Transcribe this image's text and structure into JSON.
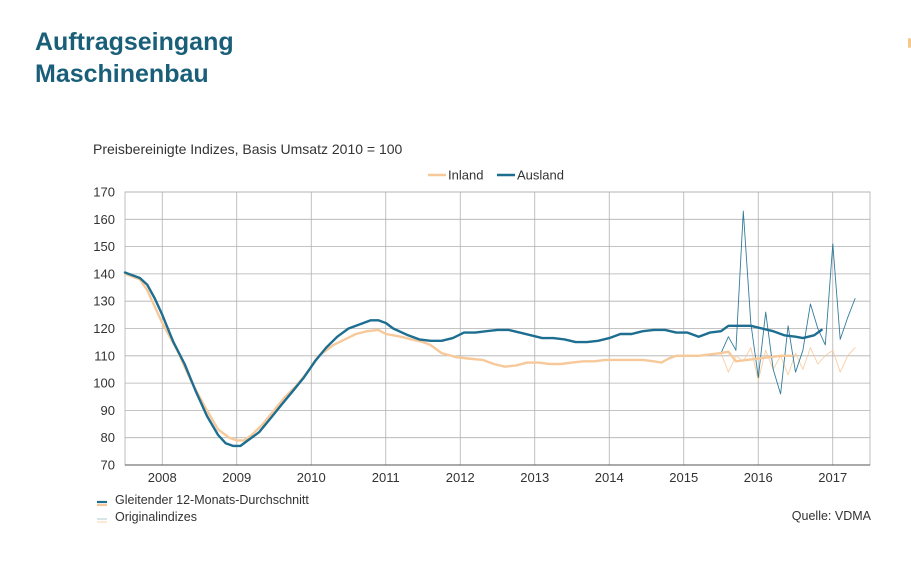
{
  "title": {
    "line1": "Auftragseingang",
    "line2": "Maschinenbau"
  },
  "subtitle": "Preisbereinigte Indizes, Basis Umsatz 2010 = 100",
  "legend_footer": {
    "smooth": "Gleitender 12-Monats-Durchschnitt",
    "original": "Originalindizes"
  },
  "source": "Quelle: VDMA",
  "colors": {
    "inland": "#f7c99a",
    "ausland": "#1d6e90",
    "grid": "#b0b0b0",
    "axis": "#555555"
  },
  "chart_data": {
    "type": "line",
    "title": "Preisbereinigte Indizes, Basis Umsatz 2010 = 100",
    "xlabel": "",
    "ylabel": "",
    "ylim": [
      70,
      170
    ],
    "yticks": [
      "70",
      "80",
      "90",
      "100",
      "110",
      "120",
      "130",
      "140",
      "150",
      "160",
      "170"
    ],
    "x_domain": [
      2007.5,
      2017.5
    ],
    "xticks": [
      "2008",
      "2009",
      "2010",
      "2011",
      "2012",
      "2013",
      "2014",
      "2015",
      "2016",
      "2017"
    ],
    "grid": true,
    "legend": "top-center",
    "series": [
      {
        "name": "Inland",
        "color": "#f7c99a",
        "points": [
          [
            2007.5,
            140
          ],
          [
            2007.7,
            138
          ],
          [
            2007.8,
            134
          ],
          [
            2007.9,
            128
          ],
          [
            2008.0,
            122
          ],
          [
            2008.2,
            112
          ],
          [
            2008.4,
            100
          ],
          [
            2008.6,
            90
          ],
          [
            2008.75,
            83
          ],
          [
            2008.9,
            80
          ],
          [
            2009.0,
            79
          ],
          [
            2009.1,
            79
          ],
          [
            2009.2,
            81
          ],
          [
            2009.35,
            85
          ],
          [
            2009.5,
            90
          ],
          [
            2009.65,
            95
          ],
          [
            2009.8,
            99
          ],
          [
            2009.95,
            104
          ],
          [
            2010.1,
            110
          ],
          [
            2010.3,
            114
          ],
          [
            2010.45,
            116
          ],
          [
            2010.6,
            118
          ],
          [
            2010.75,
            119
          ],
          [
            2010.9,
            119.5
          ],
          [
            2011.0,
            118
          ],
          [
            2011.2,
            117
          ],
          [
            2011.35,
            116
          ],
          [
            2011.5,
            115
          ],
          [
            2011.6,
            114
          ],
          [
            2011.75,
            111
          ],
          [
            2011.95,
            109.5
          ],
          [
            2012.1,
            109
          ],
          [
            2012.3,
            108.5
          ],
          [
            2012.45,
            107
          ],
          [
            2012.6,
            106
          ],
          [
            2012.75,
            106.5
          ],
          [
            2012.9,
            107.5
          ],
          [
            2013.05,
            107.5
          ],
          [
            2013.2,
            107
          ],
          [
            2013.35,
            107
          ],
          [
            2013.5,
            107.5
          ],
          [
            2013.65,
            108
          ],
          [
            2013.8,
            108
          ],
          [
            2013.95,
            108.5
          ],
          [
            2014.1,
            108.5
          ],
          [
            2014.3,
            108.5
          ],
          [
            2014.45,
            108.5
          ],
          [
            2014.6,
            108
          ],
          [
            2014.7,
            107.5
          ],
          [
            2014.8,
            109
          ],
          [
            2014.9,
            110
          ],
          [
            2015.05,
            110
          ],
          [
            2015.2,
            110
          ],
          [
            2015.35,
            110.5
          ],
          [
            2015.5,
            111
          ],
          [
            2015.6,
            111.5
          ],
          [
            2015.7,
            108
          ],
          [
            2015.85,
            108.5
          ],
          [
            2016.0,
            109
          ],
          [
            2016.15,
            109.5
          ],
          [
            2016.3,
            110
          ],
          [
            2016.45,
            110
          ]
        ]
      },
      {
        "name": "Ausland",
        "color": "#1d6e90",
        "points": [
          [
            2007.5,
            140.5
          ],
          [
            2007.7,
            138.5
          ],
          [
            2007.8,
            136
          ],
          [
            2007.9,
            131
          ],
          [
            2008.0,
            125
          ],
          [
            2008.15,
            115
          ],
          [
            2008.3,
            107
          ],
          [
            2008.45,
            97
          ],
          [
            2008.6,
            88
          ],
          [
            2008.75,
            81
          ],
          [
            2008.85,
            78
          ],
          [
            2008.95,
            77
          ],
          [
            2009.05,
            77
          ],
          [
            2009.15,
            79
          ],
          [
            2009.3,
            82
          ],
          [
            2009.45,
            87
          ],
          [
            2009.6,
            92
          ],
          [
            2009.75,
            97
          ],
          [
            2009.9,
            102
          ],
          [
            2010.05,
            108
          ],
          [
            2010.2,
            113
          ],
          [
            2010.35,
            117
          ],
          [
            2010.5,
            120
          ],
          [
            2010.65,
            121.5
          ],
          [
            2010.8,
            123
          ],
          [
            2010.9,
            123
          ],
          [
            2011.0,
            122
          ],
          [
            2011.1,
            120
          ],
          [
            2011.3,
            117.5
          ],
          [
            2011.45,
            116
          ],
          [
            2011.6,
            115.5
          ],
          [
            2011.75,
            115.5
          ],
          [
            2011.9,
            116.5
          ],
          [
            2012.05,
            118.5
          ],
          [
            2012.2,
            118.5
          ],
          [
            2012.35,
            119
          ],
          [
            2012.5,
            119.5
          ],
          [
            2012.65,
            119.5
          ],
          [
            2012.8,
            118.5
          ],
          [
            2012.95,
            117.5
          ],
          [
            2013.1,
            116.5
          ],
          [
            2013.25,
            116.5
          ],
          [
            2013.4,
            116
          ],
          [
            2013.55,
            115
          ],
          [
            2013.7,
            115
          ],
          [
            2013.85,
            115.5
          ],
          [
            2014.0,
            116.5
          ],
          [
            2014.15,
            118
          ],
          [
            2014.3,
            118
          ],
          [
            2014.45,
            119
          ],
          [
            2014.6,
            119.5
          ],
          [
            2014.75,
            119.5
          ],
          [
            2014.9,
            118.5
          ],
          [
            2015.05,
            118.5
          ],
          [
            2015.2,
            117
          ],
          [
            2015.35,
            118.5
          ],
          [
            2015.5,
            119
          ],
          [
            2015.6,
            121
          ],
          [
            2015.75,
            121
          ],
          [
            2015.9,
            121
          ],
          [
            2016.05,
            120
          ],
          [
            2016.2,
            119
          ],
          [
            2016.35,
            117.5
          ],
          [
            2016.5,
            117
          ],
          [
            2016.6,
            116.5
          ],
          [
            2016.75,
            117.5
          ],
          [
            2016.85,
            119.5
          ]
        ]
      },
      {
        "name": "Inland",
        "color": "#f7c99a",
        "style": "thin",
        "points": [
          [
            2015.5,
            111
          ],
          [
            2015.6,
            104
          ],
          [
            2015.7,
            110
          ],
          [
            2015.8,
            108
          ],
          [
            2015.9,
            113
          ],
          [
            2016.0,
            101
          ],
          [
            2016.1,
            112
          ],
          [
            2016.2,
            105
          ],
          [
            2016.3,
            110
          ],
          [
            2016.4,
            103
          ],
          [
            2016.5,
            111
          ],
          [
            2016.6,
            105
          ],
          [
            2016.7,
            113
          ],
          [
            2016.8,
            107
          ],
          [
            2016.9,
            110
          ],
          [
            2017.0,
            112
          ],
          [
            2017.1,
            104
          ],
          [
            2017.2,
            110
          ],
          [
            2017.3,
            113
          ]
        ]
      },
      {
        "name": "Ausland",
        "color": "#1d6e90",
        "style": "thin",
        "points": [
          [
            2015.5,
            111
          ],
          [
            2015.6,
            117
          ],
          [
            2015.7,
            112
          ],
          [
            2015.8,
            163
          ],
          [
            2015.9,
            122
          ],
          [
            2016.0,
            102
          ],
          [
            2016.1,
            126
          ],
          [
            2016.2,
            105
          ],
          [
            2016.3,
            96
          ],
          [
            2016.4,
            121
          ],
          [
            2016.5,
            104
          ],
          [
            2016.6,
            112
          ],
          [
            2016.7,
            129
          ],
          [
            2016.8,
            120
          ],
          [
            2016.9,
            114
          ],
          [
            2017.0,
            151
          ],
          [
            2017.1,
            116
          ],
          [
            2017.2,
            124
          ],
          [
            2017.3,
            131
          ]
        ]
      }
    ]
  }
}
